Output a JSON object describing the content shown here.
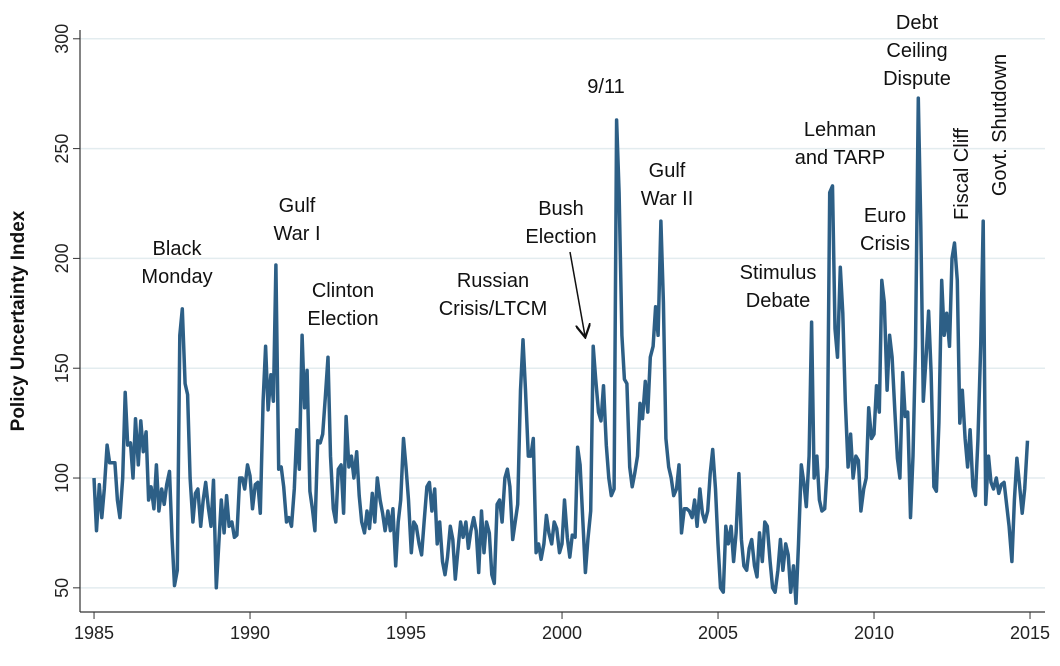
{
  "chart_data": {
    "type": "line",
    "ylabel": "Policy Uncertainty Index",
    "color": "#2d5f86",
    "grid": true,
    "xlim": [
      1984.55,
      2015.48
    ],
    "ylim": [
      39,
      304
    ],
    "xticks": [
      1985,
      1990,
      1995,
      2000,
      2005,
      2010,
      2015
    ],
    "yticks": [
      50,
      100,
      150,
      200,
      250,
      300
    ],
    "annotations": [
      {
        "lines": [
          "Black",
          "Monday"
        ]
      },
      {
        "lines": [
          "Gulf",
          "War I"
        ]
      },
      {
        "lines": [
          "Clinton",
          "Election"
        ]
      },
      {
        "lines": [
          "Russian",
          "Crisis/LTCM"
        ]
      },
      {
        "lines": [
          "Bush",
          "Election"
        ]
      },
      {
        "lines": [
          "9/11"
        ]
      },
      {
        "lines": [
          "Gulf",
          "War II"
        ]
      },
      {
        "lines": [
          "Stimulus",
          "Debate"
        ]
      },
      {
        "lines": [
          "Lehman",
          "and TARP"
        ]
      },
      {
        "lines": [
          "Euro",
          "Crisis"
        ]
      },
      {
        "lines": [
          "Debt",
          "Ceiling",
          "Dispute"
        ]
      },
      {
        "lines": [
          "Fiscal Cliff"
        ]
      },
      {
        "lines": [
          "Govt. Shutdown"
        ]
      }
    ],
    "x": [
      1985,
      1985.08,
      1985.17,
      1985.25,
      1985.33,
      1985.42,
      1985.5,
      1985.58,
      1985.67,
      1985.75,
      1985.83,
      1985.92,
      1986,
      1986.08,
      1986.17,
      1986.25,
      1986.33,
      1986.42,
      1986.5,
      1986.58,
      1986.67,
      1986.75,
      1986.83,
      1986.92,
      1987,
      1987.08,
      1987.17,
      1987.25,
      1987.33,
      1987.42,
      1987.5,
      1987.58,
      1987.67,
      1987.75,
      1987.83,
      1987.92,
      1988,
      1988.08,
      1988.17,
      1988.25,
      1988.33,
      1988.42,
      1988.5,
      1988.58,
      1988.67,
      1988.75,
      1988.83,
      1988.92,
      1989,
      1989.08,
      1989.17,
      1989.25,
      1989.33,
      1989.42,
      1989.5,
      1989.58,
      1989.67,
      1989.75,
      1989.83,
      1989.92,
      1990,
      1990.08,
      1990.17,
      1990.25,
      1990.33,
      1990.42,
      1990.5,
      1990.58,
      1990.67,
      1990.75,
      1990.83,
      1990.92,
      1991,
      1991.08,
      1991.17,
      1991.25,
      1991.33,
      1991.42,
      1991.5,
      1991.58,
      1991.67,
      1991.75,
      1991.83,
      1991.92,
      1992,
      1992.08,
      1992.17,
      1992.25,
      1992.33,
      1992.42,
      1992.5,
      1992.58,
      1992.67,
      1992.75,
      1992.83,
      1992.92,
      1993,
      1993.08,
      1993.17,
      1993.25,
      1993.33,
      1993.42,
      1993.5,
      1993.58,
      1993.67,
      1993.75,
      1993.83,
      1993.92,
      1994,
      1994.08,
      1994.17,
      1994.25,
      1994.33,
      1994.42,
      1994.5,
      1994.58,
      1994.67,
      1994.75,
      1994.83,
      1994.92,
      1995,
      1995.08,
      1995.17,
      1995.25,
      1995.33,
      1995.42,
      1995.5,
      1995.58,
      1995.67,
      1995.75,
      1995.83,
      1995.92,
      1996,
      1996.08,
      1996.17,
      1996.25,
      1996.33,
      1996.42,
      1996.5,
      1996.58,
      1996.67,
      1996.75,
      1996.83,
      1996.92,
      1997,
      1997.08,
      1997.17,
      1997.25,
      1997.33,
      1997.42,
      1997.5,
      1997.58,
      1997.67,
      1997.75,
      1997.83,
      1997.92,
      1998,
      1998.08,
      1998.17,
      1998.25,
      1998.33,
      1998.42,
      1998.5,
      1998.58,
      1998.67,
      1998.75,
      1998.83,
      1998.92,
      1999,
      1999.08,
      1999.17,
      1999.25,
      1999.33,
      1999.42,
      1999.5,
      1999.58,
      1999.67,
      1999.75,
      1999.83,
      1999.92,
      2000,
      2000.08,
      2000.17,
      2000.25,
      2000.33,
      2000.42,
      2000.5,
      2000.58,
      2000.67,
      2000.75,
      2000.83,
      2000.92,
      2001,
      2001.08,
      2001.17,
      2001.25,
      2001.33,
      2001.42,
      2001.5,
      2001.58,
      2001.67,
      2001.75,
      2001.83,
      2001.92,
      2002,
      2002.08,
      2002.17,
      2002.25,
      2002.33,
      2002.42,
      2002.5,
      2002.58,
      2002.67,
      2002.75,
      2002.83,
      2002.92,
      2003,
      2003.08,
      2003.17,
      2003.25,
      2003.33,
      2003.42,
      2003.5,
      2003.58,
      2003.67,
      2003.75,
      2003.83,
      2003.92,
      2004,
      2004.08,
      2004.17,
      2004.25,
      2004.33,
      2004.42,
      2004.5,
      2004.58,
      2004.67,
      2004.75,
      2004.83,
      2004.92,
      2005,
      2005.08,
      2005.17,
      2005.25,
      2005.33,
      2005.42,
      2005.5,
      2005.58,
      2005.67,
      2005.75,
      2005.83,
      2005.92,
      2006,
      2006.08,
      2006.17,
      2006.25,
      2006.33,
      2006.42,
      2006.5,
      2006.58,
      2006.67,
      2006.75,
      2006.83,
      2006.92,
      2007,
      2007.08,
      2007.17,
      2007.25,
      2007.33,
      2007.42,
      2007.5,
      2007.58,
      2007.67,
      2007.75,
      2007.83,
      2007.92,
      2008,
      2008.08,
      2008.17,
      2008.25,
      2008.33,
      2008.42,
      2008.5,
      2008.58,
      2008.67,
      2008.75,
      2008.83,
      2008.92,
      2009,
      2009.08,
      2009.17,
      2009.25,
      2009.33,
      2009.42,
      2009.5,
      2009.58,
      2009.67,
      2009.75,
      2009.83,
      2009.92,
      2010,
      2010.08,
      2010.17,
      2010.25,
      2010.33,
      2010.42,
      2010.5,
      2010.58,
      2010.67,
      2010.75,
      2010.83,
      2010.92,
      2011,
      2011.08,
      2011.17,
      2011.25,
      2011.33,
      2011.42,
      2011.5,
      2011.58,
      2011.67,
      2011.75,
      2011.83,
      2011.92,
      2012,
      2012.08,
      2012.17,
      2012.25,
      2012.33,
      2012.42,
      2012.5,
      2012.58,
      2012.67,
      2012.75,
      2012.83,
      2012.92,
      2013,
      2013.08,
      2013.17,
      2013.25,
      2013.33,
      2013.42,
      2013.5,
      2013.58,
      2013.67,
      2013.75,
      2013.83,
      2013.92,
      2014,
      2014.08,
      2014.17,
      2014.25,
      2014.33,
      2014.42,
      2014.5,
      2014.58,
      2014.67,
      2014.75,
      2014.83,
      2014.92
    ],
    "values": [
      100,
      76,
      97,
      82,
      95,
      115,
      107,
      107,
      107,
      90,
      82,
      100,
      139,
      115,
      116,
      100,
      127,
      106,
      126,
      112,
      121,
      90,
      96,
      86,
      106,
      85,
      95,
      88,
      97,
      103,
      73,
      51,
      58,
      165,
      177,
      143,
      138,
      100,
      80,
      93,
      95,
      78,
      90,
      98,
      86,
      78,
      99,
      50,
      70,
      90,
      75,
      92,
      78,
      80,
      73,
      74,
      100,
      100,
      95,
      106,
      101,
      86,
      97,
      98,
      84,
      135,
      160,
      131,
      147,
      135,
      197,
      104,
      105,
      96,
      80,
      82,
      78,
      95,
      122,
      104,
      165,
      132,
      149,
      94,
      86,
      76,
      117,
      116,
      120,
      138,
      155,
      110,
      86,
      80,
      104,
      106,
      84,
      128,
      105,
      110,
      100,
      112,
      92,
      80,
      75,
      85,
      77,
      93,
      80,
      100,
      90,
      84,
      76,
      85,
      76,
      86,
      60,
      80,
      90,
      118,
      105,
      90,
      66,
      80,
      78,
      70,
      65,
      80,
      96,
      98,
      85,
      95,
      70,
      80,
      62,
      56,
      64,
      78,
      72,
      54,
      68,
      80,
      73,
      80,
      68,
      76,
      82,
      76,
      57,
      85,
      66,
      80,
      75,
      56,
      52,
      88,
      90,
      80,
      100,
      104,
      96,
      72,
      80,
      88,
      140,
      163,
      140,
      110,
      110,
      118,
      66,
      70,
      63,
      70,
      83,
      75,
      70,
      80,
      77,
      66,
      70,
      90,
      73,
      64,
      74,
      73,
      114,
      106,
      80,
      57,
      72,
      85,
      160,
      145,
      130,
      126,
      142,
      115,
      100,
      92,
      95,
      263,
      230,
      165,
      145,
      143,
      105,
      96,
      102,
      110,
      134,
      127,
      144,
      130,
      155,
      160,
      178,
      165,
      217,
      180,
      118,
      105,
      100,
      92,
      95,
      106,
      75,
      86,
      86,
      85,
      82,
      90,
      78,
      95,
      84,
      80,
      85,
      102,
      113,
      95,
      70,
      50,
      48,
      78,
      70,
      78,
      62,
      75,
      102,
      72,
      60,
      58,
      68,
      72,
      60,
      55,
      75,
      62,
      80,
      78,
      62,
      50,
      48,
      58,
      72,
      58,
      70,
      65,
      48,
      60,
      43,
      70,
      106,
      98,
      87,
      110,
      171,
      100,
      110,
      90,
      85,
      86,
      105,
      230,
      233,
      168,
      155,
      196,
      175,
      135,
      105,
      120,
      100,
      110,
      108,
      85,
      95,
      100,
      132,
      118,
      120,
      142,
      130,
      190,
      180,
      140,
      165,
      155,
      130,
      109,
      100,
      148,
      128,
      130,
      82,
      110,
      160,
      273,
      215,
      135,
      155,
      176,
      148,
      96,
      94,
      125,
      190,
      165,
      175,
      160,
      200,
      207,
      190,
      125,
      140,
      118,
      105,
      122,
      96,
      92,
      117,
      160,
      217,
      88,
      110,
      98,
      95,
      100,
      93,
      97,
      98,
      88,
      78,
      62,
      90,
      109,
      96,
      84,
      95,
      117
    ]
  }
}
